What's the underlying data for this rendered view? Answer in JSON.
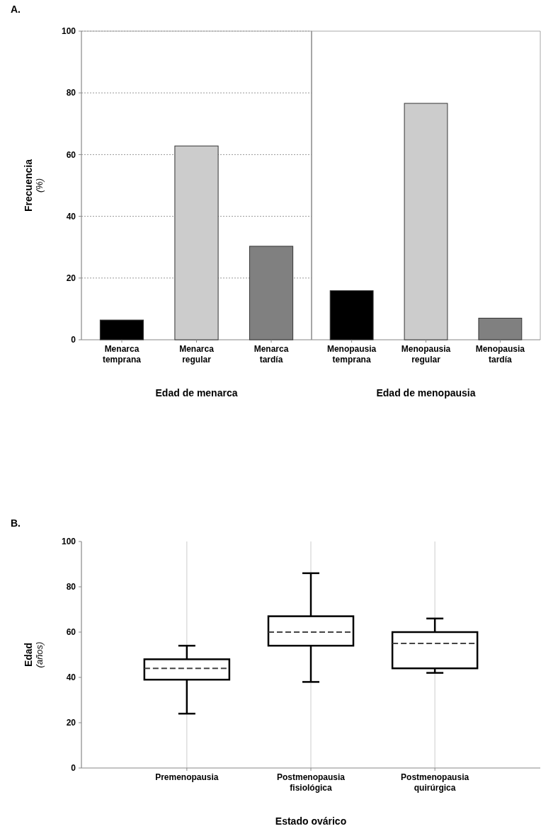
{
  "chart_data": [
    {
      "type": "bar",
      "title": "A.",
      "ylabel": "Frecuencia (%)",
      "xlabel": "Edad de menarca",
      "categories": [
        "Menarca temprana",
        "Menarca regular",
        "Menarca tardía"
      ],
      "values": [
        6.4,
        62.8,
        30.3
      ],
      "colors": [
        "#000000",
        "#cccccc",
        "#808080"
      ],
      "ylim": [
        0,
        100
      ],
      "yticks": [
        0,
        20,
        40,
        60,
        80,
        100
      ],
      "grid": "y"
    },
    {
      "type": "bar",
      "xlabel": "Edad de menopausia",
      "categories": [
        "Menopausia temprana",
        "Menopausia regular",
        "Menopausia tardía"
      ],
      "values": [
        15.9,
        76.6,
        7.0
      ],
      "colors": [
        "#000000",
        "#cccccc",
        "#808080"
      ],
      "ylim": [
        0,
        100
      ],
      "tick_labels": "x",
      "grid": "y"
    },
    {
      "type": "box",
      "title": "B.",
      "ylabel": "Edad (años)",
      "xlabel": "Estado ovárico",
      "categories": [
        "Premenopausia",
        "Postmenopausia fisiológica",
        "Postmenopausia quirúrgica"
      ],
      "boxes": [
        {
          "low": 24,
          "q1": 39,
          "median": 44,
          "q3": 48,
          "high": 54
        },
        {
          "low": 38,
          "q1": 54,
          "median": 60,
          "q3": 67,
          "high": 86
        },
        {
          "low": 42,
          "q1": 44,
          "median": 55,
          "q3": 60,
          "high": 66
        }
      ],
      "ylim": [
        0,
        100
      ],
      "yticks": [
        0,
        20,
        40,
        60,
        80,
        100
      ],
      "grid": "x"
    }
  ]
}
